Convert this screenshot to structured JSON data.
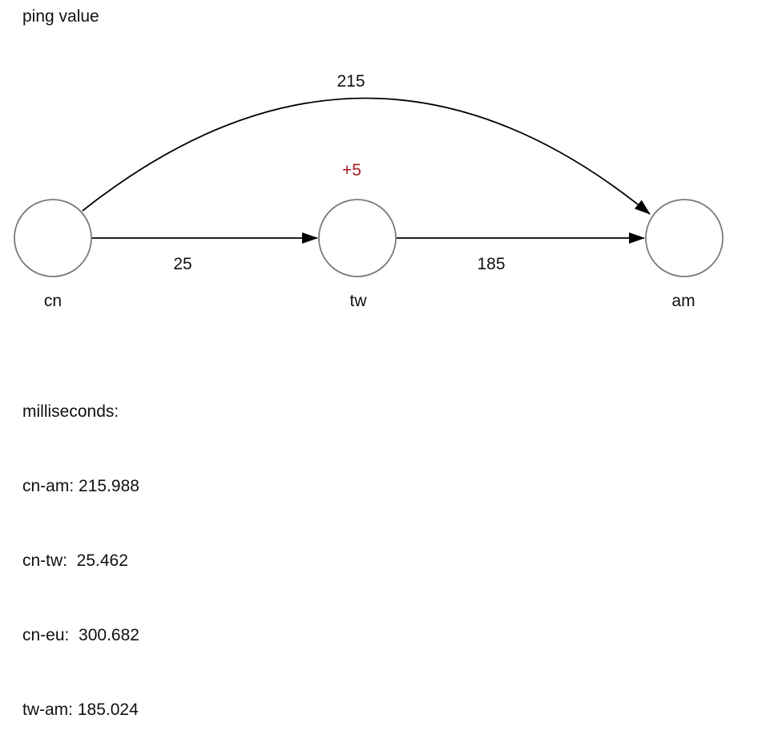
{
  "title": "ping value",
  "nodes": {
    "cn": {
      "label": "cn"
    },
    "tw": {
      "label": "tw"
    },
    "am": {
      "label": "am"
    }
  },
  "edges": {
    "cn_am": {
      "label": "215"
    },
    "cn_tw": {
      "label": "25"
    },
    "tw_am": {
      "label": "185"
    }
  },
  "delta_label": "+5",
  "colors": {
    "node_stroke": "#7a7a7a",
    "edge_stroke": "#000000",
    "delta_text": "#a8191c"
  },
  "stats": {
    "heading": "milliseconds:",
    "lines": [
      "cn-am: 215.988",
      "cn-tw:  25.462",
      "cn-eu:  300.682",
      "tw-am: 185.024"
    ]
  }
}
